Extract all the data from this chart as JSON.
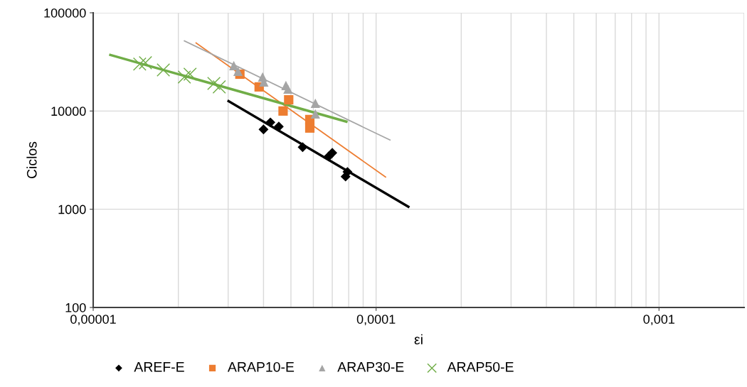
{
  "chart_data": {
    "type": "scatter",
    "xlabel": "εi",
    "ylabel": "Ciclos",
    "log": "xy",
    "xlim": [
      1e-05,
      0.002
    ],
    "ylim": [
      100,
      100000
    ],
    "xticks": [
      {
        "value": 1e-05,
        "label": "0,00001"
      },
      {
        "value": 0.0001,
        "label": "0,0001"
      },
      {
        "value": 0.001,
        "label": "0,001"
      }
    ],
    "yticks": [
      100,
      1000,
      10000,
      100000
    ],
    "grid": true,
    "legend": "bottom",
    "series": [
      {
        "name": "AREF-E",
        "color": "#000000",
        "marker": "diamond",
        "x": [
          4e-05,
          4.23e-05,
          4.53e-05,
          5.5e-05,
          6.8e-05,
          7e-05,
          7.8e-05,
          7.92e-05
        ],
        "values": [
          6490,
          7660,
          6940,
          4280,
          3450,
          3750,
          2150,
          2400
        ]
      },
      {
        "name": "ARAP10-E",
        "color": "#ed7d31",
        "marker": "square",
        "x": [
          3.3e-05,
          3.86e-05,
          4.69e-05,
          4.91e-05,
          5.83e-05,
          5.83e-05
        ],
        "values": [
          23700,
          17600,
          10000,
          13000,
          6710,
          8190
        ]
      },
      {
        "name": "ARAP30-E",
        "color": "#a5a5a5",
        "marker": "triangle",
        "x": [
          3.14e-05,
          3.25e-05,
          3.97e-05,
          4.01e-05,
          4.8e-05,
          4.88e-05,
          6.1e-05,
          6.1e-05
        ],
        "values": [
          29000,
          25400,
          22200,
          19800,
          18200,
          16700,
          12000,
          9350
        ]
      },
      {
        "name": "ARAP50-E",
        "color": "#70ad47",
        "marker": "cross",
        "x": [
          1.46e-05,
          1.53e-05,
          1.77e-05,
          2.1e-05,
          2.2e-05,
          2.67e-05,
          2.79e-05
        ],
        "values": [
          30000,
          31000,
          26200,
          22200,
          23700,
          19100,
          17600
        ]
      },
      {
        "type": "line",
        "color": "#000000",
        "x": [
          3.01e-05,
          0.00013
        ],
        "values": [
          12600,
          1060
        ]
      },
      {
        "type": "line",
        "color": "#ed7d31",
        "x": [
          2.31e-05,
          0.000108
        ],
        "values": [
          49300,
          2130
        ]
      },
      {
        "type": "line",
        "color": "#a5a5a5",
        "x": [
          2.1e-05,
          0.000112
        ],
        "values": [
          51800,
          5060
        ]
      },
      {
        "type": "line",
        "color": "#70ad47",
        "x": [
          1.15e-05,
          7.85e-05
        ],
        "values": [
          37200,
          7800
        ]
      }
    ]
  }
}
